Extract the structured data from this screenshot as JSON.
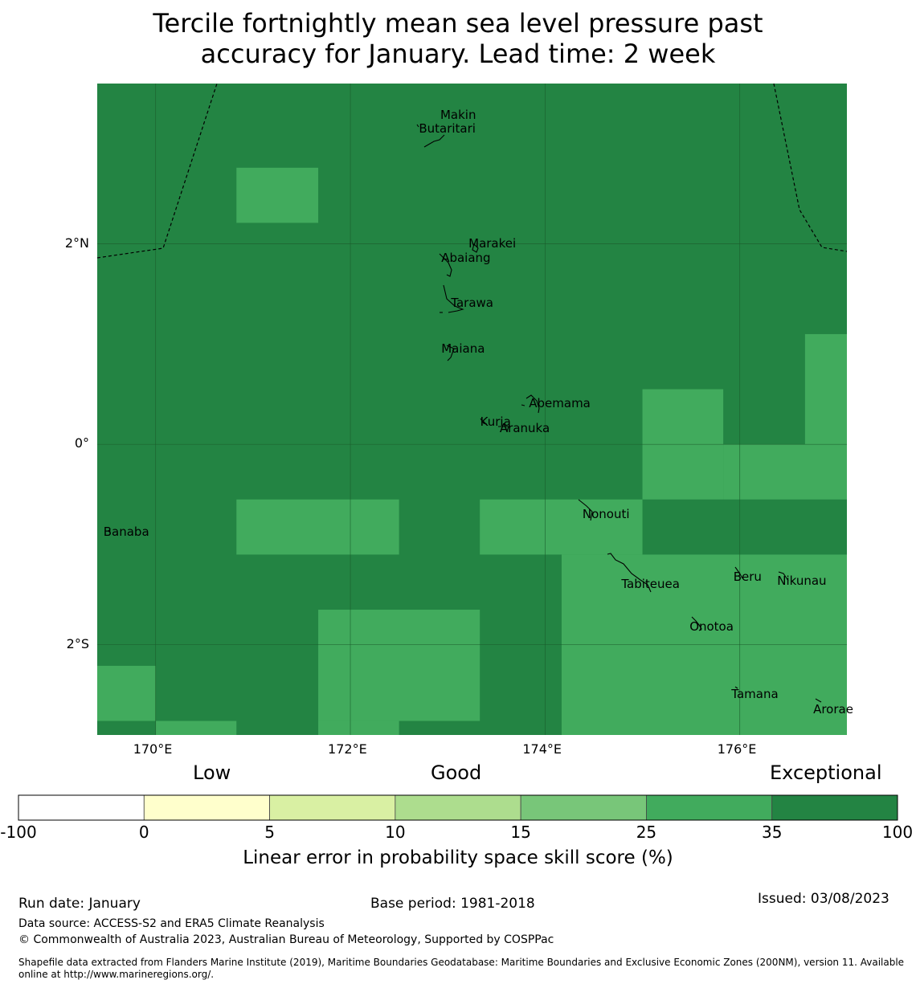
{
  "title": {
    "line1": "Tercile fortnightly mean sea level pressure past",
    "line2": "accuracy for January. Lead time: 2 week"
  },
  "map": {
    "lon_range": [
      169.4,
      177.1
    ],
    "lat_range": [
      -2.9,
      3.6
    ],
    "x_ticks": [
      {
        "lon": 170,
        "label": "170°E"
      },
      {
        "lon": 172,
        "label": "172°E"
      },
      {
        "lon": 174,
        "label": "174°E"
      },
      {
        "lon": 176,
        "label": "176°E"
      }
    ],
    "y_ticks": [
      {
        "lat": 2,
        "label": "2°N"
      },
      {
        "lat": 0,
        "label": "0°"
      },
      {
        "lat": -2,
        "label": "2°S"
      }
    ],
    "background_category": "35-100",
    "cells": [
      {
        "lon": [
          170.83,
          171.67
        ],
        "lat": [
          2.21,
          2.76
        ],
        "category": "25-35"
      },
      {
        "lon": [
          175.0,
          175.83
        ],
        "lat": [
          -0.55,
          0.55
        ],
        "category": "25-35"
      },
      {
        "lon": [
          176.67,
          177.1
        ],
        "lat": [
          0.0,
          1.1
        ],
        "category": "25-35"
      },
      {
        "lon": [
          175.83,
          177.1
        ],
        "lat": [
          -0.55,
          0.0
        ],
        "category": "25-35"
      },
      {
        "lon": [
          170.83,
          172.5
        ],
        "lat": [
          -1.1,
          -0.55
        ],
        "category": "25-35"
      },
      {
        "lon": [
          173.33,
          175.0
        ],
        "lat": [
          -1.1,
          -0.55
        ],
        "category": "25-35"
      },
      {
        "lon": [
          174.17,
          177.1
        ],
        "lat": [
          -2.9,
          -1.1
        ],
        "category": "25-35"
      },
      {
        "lon": [
          171.67,
          173.33
        ],
        "lat": [
          -2.76,
          -1.65
        ],
        "category": "25-35"
      },
      {
        "lon": [
          171.67,
          172.5
        ],
        "lat": [
          -2.9,
          -2.76
        ],
        "category": "25-35"
      },
      {
        "lon": [
          169.4,
          170.0
        ],
        "lat": [
          -2.76,
          -2.21
        ],
        "category": "25-35"
      },
      {
        "lon": [
          170.0,
          170.83
        ],
        "lat": [
          -2.9,
          -2.76
        ],
        "category": "25-35"
      }
    ],
    "islands": [
      {
        "name": "Makin",
        "lon": 172.99,
        "lat": 3.28
      },
      {
        "name": "Butaritari",
        "lon": 172.77,
        "lat": 3.14
      },
      {
        "name": "Marakei",
        "lon": 173.28,
        "lat": 2.0
      },
      {
        "name": "Abaiang",
        "lon": 173.0,
        "lat": 1.85
      },
      {
        "name": "Tarawa",
        "lon": 173.1,
        "lat": 1.4
      },
      {
        "name": "Maiana",
        "lon": 173.0,
        "lat": 0.95
      },
      {
        "name": "Abemama",
        "lon": 173.9,
        "lat": 0.4
      },
      {
        "name": "Kuria",
        "lon": 173.4,
        "lat": 0.22
      },
      {
        "name": "Aranuka",
        "lon": 173.6,
        "lat": 0.15
      },
      {
        "name": "Nonouti",
        "lon": 174.45,
        "lat": -0.7
      },
      {
        "name": "Banaba",
        "lon": 169.53,
        "lat": -0.88
      },
      {
        "name": "Tabiteuea",
        "lon": 174.85,
        "lat": -1.4
      },
      {
        "name": "Beru",
        "lon": 176.0,
        "lat": -1.33
      },
      {
        "name": "Nikunau",
        "lon": 176.45,
        "lat": -1.37
      },
      {
        "name": "Onotoa",
        "lon": 175.55,
        "lat": -1.83
      },
      {
        "name": "Tamana",
        "lon": 175.98,
        "lat": -2.5
      },
      {
        "name": "Arorae",
        "lon": 176.82,
        "lat": -2.65
      }
    ]
  },
  "colorbar": {
    "words": {
      "low": "Low",
      "good": "Good",
      "exceptional": "Exceptional"
    },
    "bounds": [
      "-100",
      "0",
      "5",
      "10",
      "15",
      "25",
      "35",
      "100"
    ],
    "colors": [
      "#ffffff",
      "#ffffcc",
      "#d9f0a3",
      "#addd8e",
      "#78c679",
      "#41ab5d",
      "#238443"
    ],
    "label": "Linear error in probability space skill score (%)"
  },
  "footer": {
    "run_date": "Run date: January",
    "base_period": "Base period: 1981-2018",
    "issued": "Issued: 03/08/2023",
    "data_source": "Data source: ACCESS-S2 and ERA5 Climate Reanalysis",
    "copyright": "© Commonwealth of Australia 2023, Australian Bureau of Meteorology, Supported by COSPPac",
    "shapefile": "Shapefile data extracted from Flanders Marine Institute (2019), Maritime Boundaries Geodatabase: Maritime Boundaries and Exclusive Economic Zones (200NM), version 11. Available online at http://www.marineregions.org/."
  }
}
